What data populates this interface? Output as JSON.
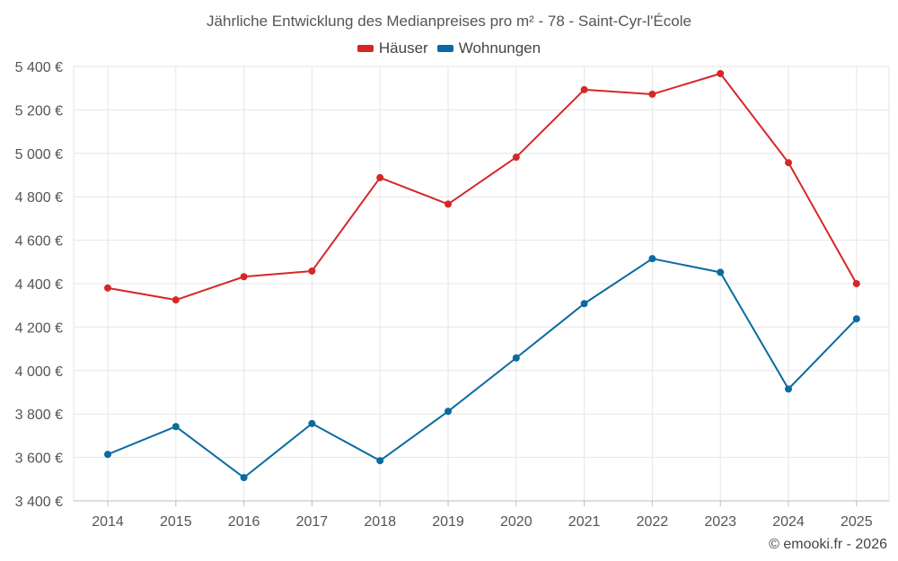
{
  "chart_data": {
    "type": "line",
    "title": "Jährliche Entwicklung des Medianpreises pro m² - 78 - Saint-Cyr-l'École",
    "x": [
      "2014",
      "2015",
      "2016",
      "2017",
      "2018",
      "2019",
      "2020",
      "2021",
      "2022",
      "2023",
      "2024",
      "2025"
    ],
    "series": [
      {
        "name": "Häuser",
        "color": "#d62728",
        "values": [
          4380,
          4325,
          4432,
          4458,
          4888,
          4766,
          4982,
          5293,
          5272,
          5367,
          4957,
          4400
        ]
      },
      {
        "name": "Wohnungen",
        "color": "#0a6aa1",
        "values": [
          3614,
          3742,
          3507,
          3756,
          3585,
          3812,
          4058,
          4308,
          4515,
          4452,
          3915,
          4238
        ]
      }
    ],
    "ylim": [
      3400,
      5400
    ],
    "yticks": [
      3400,
      3600,
      3800,
      4000,
      4200,
      4400,
      4600,
      4800,
      5000,
      5200,
      5400
    ],
    "ytick_labels": [
      "3 400 €",
      "3 600 €",
      "3 800 €",
      "4 000 €",
      "4 200 €",
      "4 400 €",
      "4 600 €",
      "4 800 €",
      "5 000 €",
      "5 200 €",
      "5 400 €"
    ],
    "grid": true,
    "legend_position": "top-center",
    "credit": "© emooki.fr - 2026"
  }
}
